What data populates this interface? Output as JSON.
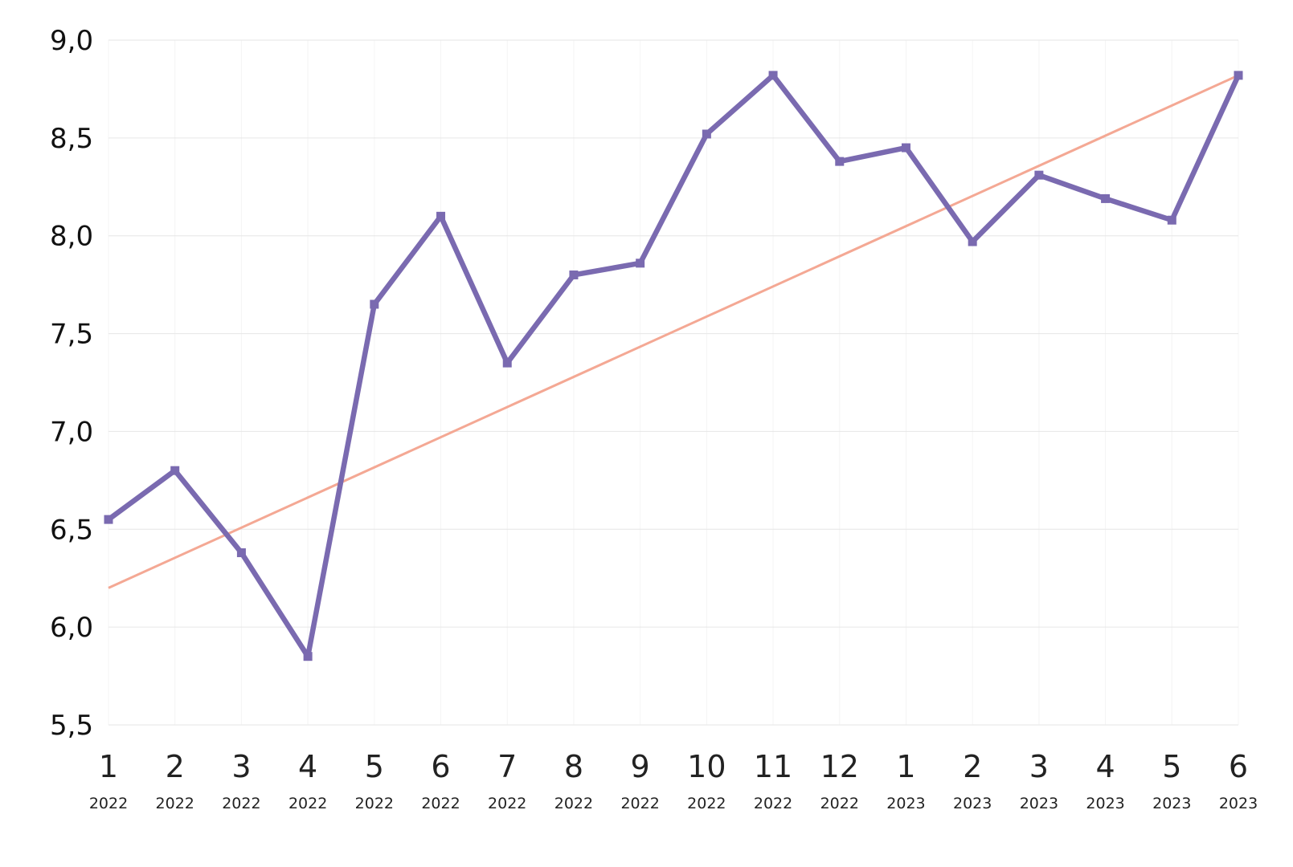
{
  "chart_data": {
    "type": "line",
    "title": "",
    "xlabel": "",
    "ylabel": "",
    "ylim": [
      5.5,
      9.0
    ],
    "yticks": [
      "9,0",
      "8,5",
      "8,0",
      "7,5",
      "7,0",
      "6,5",
      "6,0",
      "5,5"
    ],
    "categories": [
      {
        "month": "1",
        "year": "2022"
      },
      {
        "month": "2",
        "year": "2022"
      },
      {
        "month": "3",
        "year": "2022"
      },
      {
        "month": "4",
        "year": "2022"
      },
      {
        "month": "5",
        "year": "2022"
      },
      {
        "month": "6",
        "year": "2022"
      },
      {
        "month": "7",
        "year": "2022"
      },
      {
        "month": "8",
        "year": "2022"
      },
      {
        "month": "9",
        "year": "2022"
      },
      {
        "month": "10",
        "year": "2022"
      },
      {
        "month": "11",
        "year": "2022"
      },
      {
        "month": "12",
        "year": "2022"
      },
      {
        "month": "1",
        "year": "2023"
      },
      {
        "month": "2",
        "year": "2023"
      },
      {
        "month": "3",
        "year": "2023"
      },
      {
        "month": "4",
        "year": "2023"
      },
      {
        "month": "5",
        "year": "2023"
      },
      {
        "month": "6",
        "year": "2023"
      }
    ],
    "series": [
      {
        "values": [
          6.55,
          6.8,
          6.38,
          5.85,
          7.65,
          8.1,
          7.35,
          7.8,
          7.86,
          8.52,
          8.82,
          8.38,
          8.45,
          7.97,
          8.31,
          8.19,
          8.08,
          8.82
        ],
        "color": "#7a6ab0",
        "marker": "square"
      }
    ],
    "trendline": {
      "start": 6.2,
      "end": 8.82,
      "color": "#f4a894"
    },
    "grid": true,
    "legend": "none"
  }
}
